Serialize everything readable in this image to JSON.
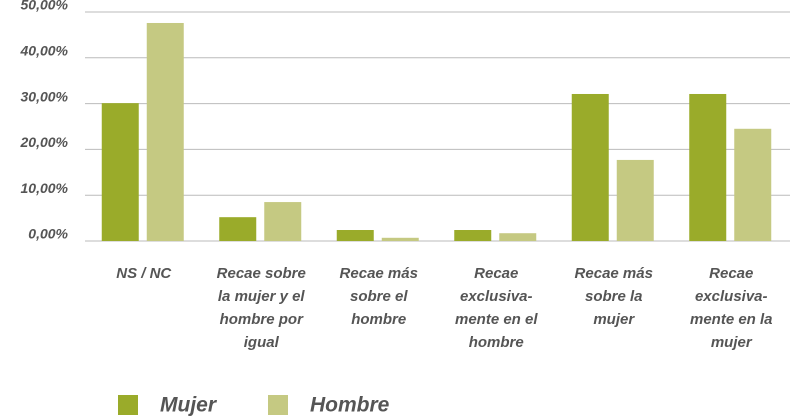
{
  "chart_data": {
    "type": "bar",
    "categories": [
      "NS / NC",
      "Recae sobre\nla mujer y el\nhombre por\nigual",
      "Recae más\nsobre el\nhombre",
      "Recae\nexclusiva-\nmente en el\nhombre",
      "Recae más\nsobre la\nmujer",
      "Recae\nexclusiva-\nmente en la\nmujer"
    ],
    "series": [
      {
        "name": "Mujer",
        "color": "#9aab2a",
        "values": [
          30.1,
          5.2,
          2.4,
          2.4,
          32.1,
          32.1
        ]
      },
      {
        "name": "Hombre",
        "color": "#c5c982",
        "values": [
          47.6,
          8.5,
          0.7,
          1.7,
          17.7,
          24.5
        ]
      }
    ],
    "ylim": [
      0,
      50
    ],
    "yticks": [
      {
        "value": 0,
        "label": "0,00%"
      },
      {
        "value": 10,
        "label": "10,00%"
      },
      {
        "value": 20,
        "label": "20,00%"
      },
      {
        "value": 30,
        "label": "30,00%"
      },
      {
        "value": 40,
        "label": "40,00%"
      },
      {
        "value": 50,
        "label": "50,00%"
      }
    ],
    "grid": true,
    "legend": "bottom"
  }
}
